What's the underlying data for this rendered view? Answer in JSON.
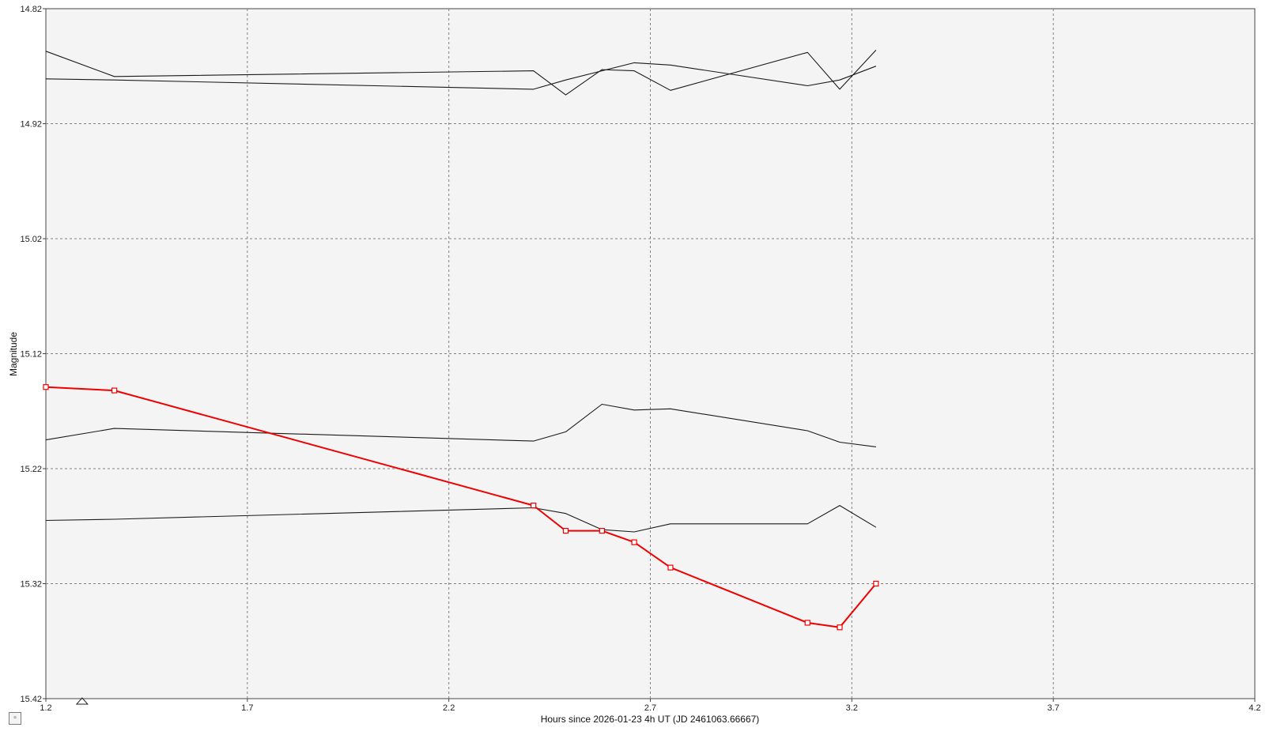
{
  "chart_data": {
    "type": "line",
    "title": "",
    "xlabel": "Hours since 2026-01-23 4h UT (JD 2461063.66667)",
    "ylabel": "Magnitude",
    "xlim": [
      1.2,
      4.2
    ],
    "ylim": [
      14.82,
      15.42
    ],
    "y_inverted": true,
    "x_ticks": [
      "1.2",
      "1.7",
      "2.2",
      "2.7",
      "3.2",
      "3.7",
      "4.2"
    ],
    "y_ticks": [
      "14.82",
      "14.92",
      "15.02",
      "15.12",
      "15.22",
      "15.32",
      "15.42"
    ],
    "grid": true,
    "marker_triangle_x": 1.29,
    "colors": {
      "target": "#ee0000",
      "comparison": "#1a1a1a",
      "plot_background": "#f4f4f4",
      "grid": "#808080"
    },
    "series": [
      {
        "role": "target",
        "marker": "square",
        "x": [
          1.2,
          1.37,
          2.41,
          2.49,
          2.58,
          2.66,
          2.75,
          3.09,
          3.17,
          3.26
        ],
        "y": [
          15.149,
          15.152,
          15.252,
          15.274,
          15.274,
          15.284,
          15.306,
          15.354,
          15.358,
          15.32
        ]
      },
      {
        "role": "comparison",
        "x": [
          1.2,
          1.37,
          2.41,
          2.49,
          2.58,
          2.66,
          2.75,
          3.09,
          3.17,
          3.26
        ],
        "y": [
          14.857,
          14.879,
          14.874,
          14.895,
          14.873,
          14.874,
          14.891,
          14.858,
          14.89,
          14.856
        ]
      },
      {
        "role": "comparison",
        "x": [
          1.2,
          1.37,
          2.41,
          2.49,
          2.58,
          2.66,
          2.75,
          3.09,
          3.17,
          3.26
        ],
        "y": [
          14.881,
          14.882,
          14.89,
          14.882,
          14.874,
          14.867,
          14.869,
          14.887,
          14.882,
          14.87
        ]
      },
      {
        "role": "comparison",
        "x": [
          1.2,
          1.37,
          2.41,
          2.49,
          2.58,
          2.66,
          2.75,
          3.09,
          3.17,
          3.26
        ],
        "y": [
          15.195,
          15.185,
          15.196,
          15.188,
          15.164,
          15.169,
          15.168,
          15.187,
          15.197,
          15.201
        ]
      },
      {
        "role": "comparison",
        "x": [
          1.2,
          1.37,
          2.41,
          2.49,
          2.58,
          2.66,
          2.75,
          3.09,
          3.17,
          3.26
        ],
        "y": [
          15.265,
          15.264,
          15.254,
          15.259,
          15.273,
          15.275,
          15.268,
          15.268,
          15.252,
          15.271
        ]
      }
    ]
  },
  "controls": {
    "corner_button_label": "▫"
  }
}
